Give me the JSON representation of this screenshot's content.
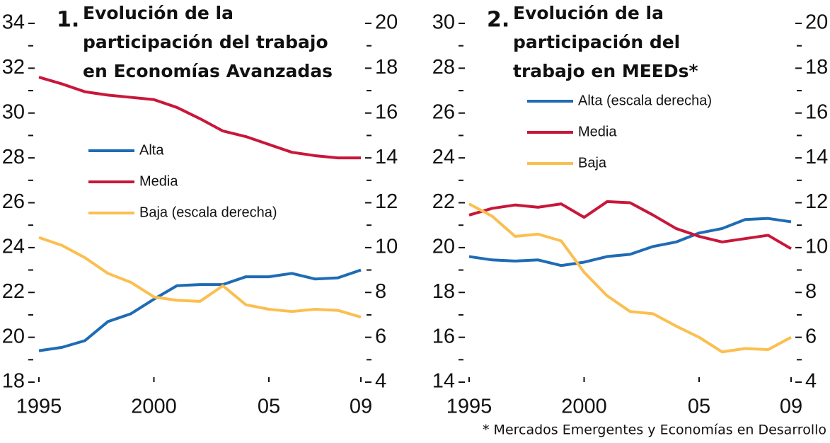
{
  "chart_data": [
    {
      "type": "line",
      "number": "1.",
      "title": [
        "Evolución de la",
        "participación del trabajo",
        "en Economías Avanzadas"
      ],
      "x": [
        1995,
        1996,
        1997,
        1998,
        1999,
        2000,
        2001,
        2002,
        2003,
        2004,
        2005,
        2006,
        2007,
        2008,
        2009
      ],
      "xlim": [
        1995,
        2009
      ],
      "xticks": [
        1995,
        2000,
        {
          "value": 2005,
          "label": "05"
        },
        {
          "value": 2009,
          "label": "09"
        }
      ],
      "ylim": [
        18,
        34
      ],
      "yticks": [
        18,
        20,
        22,
        24,
        26,
        28,
        30,
        32,
        34
      ],
      "yminorticks": [
        19,
        21,
        23,
        25,
        27,
        29,
        31,
        33
      ],
      "y2lim": [
        4,
        20
      ],
      "y2ticks": [
        4,
        6,
        8,
        10,
        12,
        14,
        16,
        18,
        20
      ],
      "y2minorticks": [
        5,
        7,
        9,
        11,
        13,
        15,
        17,
        19
      ],
      "series": [
        {
          "name": "Alta",
          "color": "#1f6bb5",
          "values": [
            19.4,
            19.55,
            19.85,
            20.7,
            21.05,
            21.7,
            22.3,
            22.35,
            22.35,
            22.7,
            22.7,
            22.85,
            22.6,
            22.65,
            23.0
          ]
        },
        {
          "name": "Media",
          "color": "#c8173a",
          "values": [
            31.6,
            31.3,
            30.95,
            30.8,
            30.7,
            30.6,
            30.25,
            29.75,
            29.2,
            28.95,
            28.6,
            28.25,
            28.1,
            28.0,
            28.0
          ]
        },
        {
          "name": "Baja (escala derecha)",
          "color": "#fbbf50",
          "axis": "y2",
          "values": [
            10.45,
            10.1,
            9.55,
            8.85,
            8.45,
            7.8,
            7.65,
            7.6,
            8.3,
            7.45,
            7.25,
            7.15,
            7.25,
            7.2,
            6.9
          ]
        }
      ]
    },
    {
      "type": "line",
      "number": "2.",
      "title": [
        "Evolución de la",
        "participación del",
        "trabajo en MEEDs*"
      ],
      "x": [
        1995,
        1996,
        1997,
        1998,
        1999,
        2000,
        2001,
        2002,
        2003,
        2004,
        2005,
        2006,
        2007,
        2008,
        2009
      ],
      "xlim": [
        1995,
        2009
      ],
      "xticks": [
        1995,
        2000,
        {
          "value": 2005,
          "label": "05"
        },
        {
          "value": 2009,
          "label": "09"
        }
      ],
      "ylim": [
        14,
        30
      ],
      "yticks": [
        14,
        16,
        18,
        20,
        22,
        24,
        26,
        28,
        30
      ],
      "yminorticks": [
        15,
        17,
        19,
        21,
        23,
        25,
        27,
        29
      ],
      "y2lim": [
        4,
        20
      ],
      "y2ticks": [
        4,
        6,
        8,
        10,
        12,
        14,
        16,
        18,
        20
      ],
      "y2minorticks": [
        5,
        7,
        9,
        11,
        13,
        15,
        17,
        19
      ],
      "series": [
        {
          "name": "Alta (escala derecha)",
          "color": "#1f6bb5",
          "axis": "y2",
          "values": [
            9.6,
            9.45,
            9.4,
            9.45,
            9.2,
            9.35,
            9.6,
            9.7,
            10.05,
            10.25,
            10.65,
            10.85,
            11.25,
            11.3,
            11.15
          ]
        },
        {
          "name": "Media",
          "color": "#c8173a",
          "values": [
            21.45,
            21.75,
            21.9,
            21.8,
            21.95,
            21.35,
            22.05,
            22.0,
            21.45,
            20.85,
            20.5,
            20.25,
            20.4,
            20.55,
            19.95
          ]
        },
        {
          "name": "Baja",
          "color": "#fbbf50",
          "values": [
            21.95,
            21.4,
            20.5,
            20.6,
            20.3,
            18.9,
            17.85,
            17.15,
            17.05,
            16.5,
            16.0,
            15.35,
            15.5,
            15.45,
            16.0
          ]
        }
      ]
    }
  ],
  "footnote": "* Mercados Emergentes y Economías en Desarrollo"
}
